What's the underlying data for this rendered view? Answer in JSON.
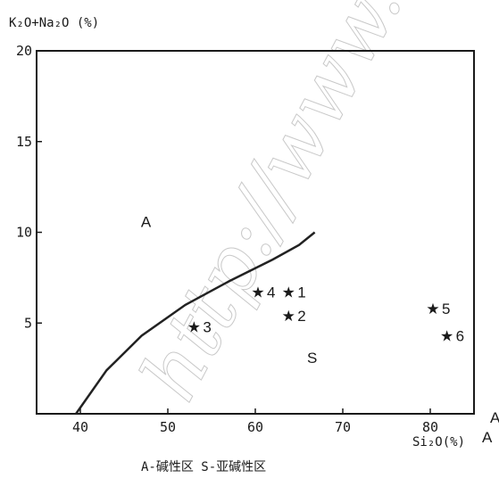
{
  "chart_data": {
    "type": "scatter",
    "ylabel": "K₂O+Na₂O (%)",
    "xlabel": "Si₂O(%)",
    "xlim": [
      35,
      85
    ],
    "ylim": [
      0,
      20
    ],
    "x_ticks": [
      "40",
      "50",
      "60",
      "70",
      "80"
    ],
    "y_ticks": [
      "20",
      "15",
      "10",
      "5"
    ],
    "grid": false,
    "boundary_curve": {
      "x": [
        39.5,
        43,
        47,
        52,
        57,
        62,
        65,
        66.8
      ],
      "y": [
        0,
        2.4,
        4.3,
        6.0,
        7.3,
        8.5,
        9.3,
        10.0
      ]
    },
    "regions": [
      {
        "label": "A",
        "x": 47.5,
        "y": 10.3
      },
      {
        "label": "S",
        "x": 66.5,
        "y": 2.8
      }
    ],
    "points": [
      {
        "label": "1",
        "x": 63.8,
        "y": 6.7,
        "marker": "★"
      },
      {
        "label": "2",
        "x": 63.8,
        "y": 5.4,
        "marker": "★"
      },
      {
        "label": "3",
        "x": 53.0,
        "y": 4.8,
        "marker": "★"
      },
      {
        "label": "4",
        "x": 60.3,
        "y": 6.7,
        "marker": "★"
      },
      {
        "label": "5",
        "x": 80.3,
        "y": 5.8,
        "marker": "★"
      },
      {
        "label": "6",
        "x": 81.9,
        "y": 4.3,
        "marker": "★"
      }
    ]
  },
  "caption": "A-碱性区  S-亚碱性区",
  "watermark": "http://www.",
  "edge_glyph_top": "A",
  "edge_glyph_bottom": "A"
}
